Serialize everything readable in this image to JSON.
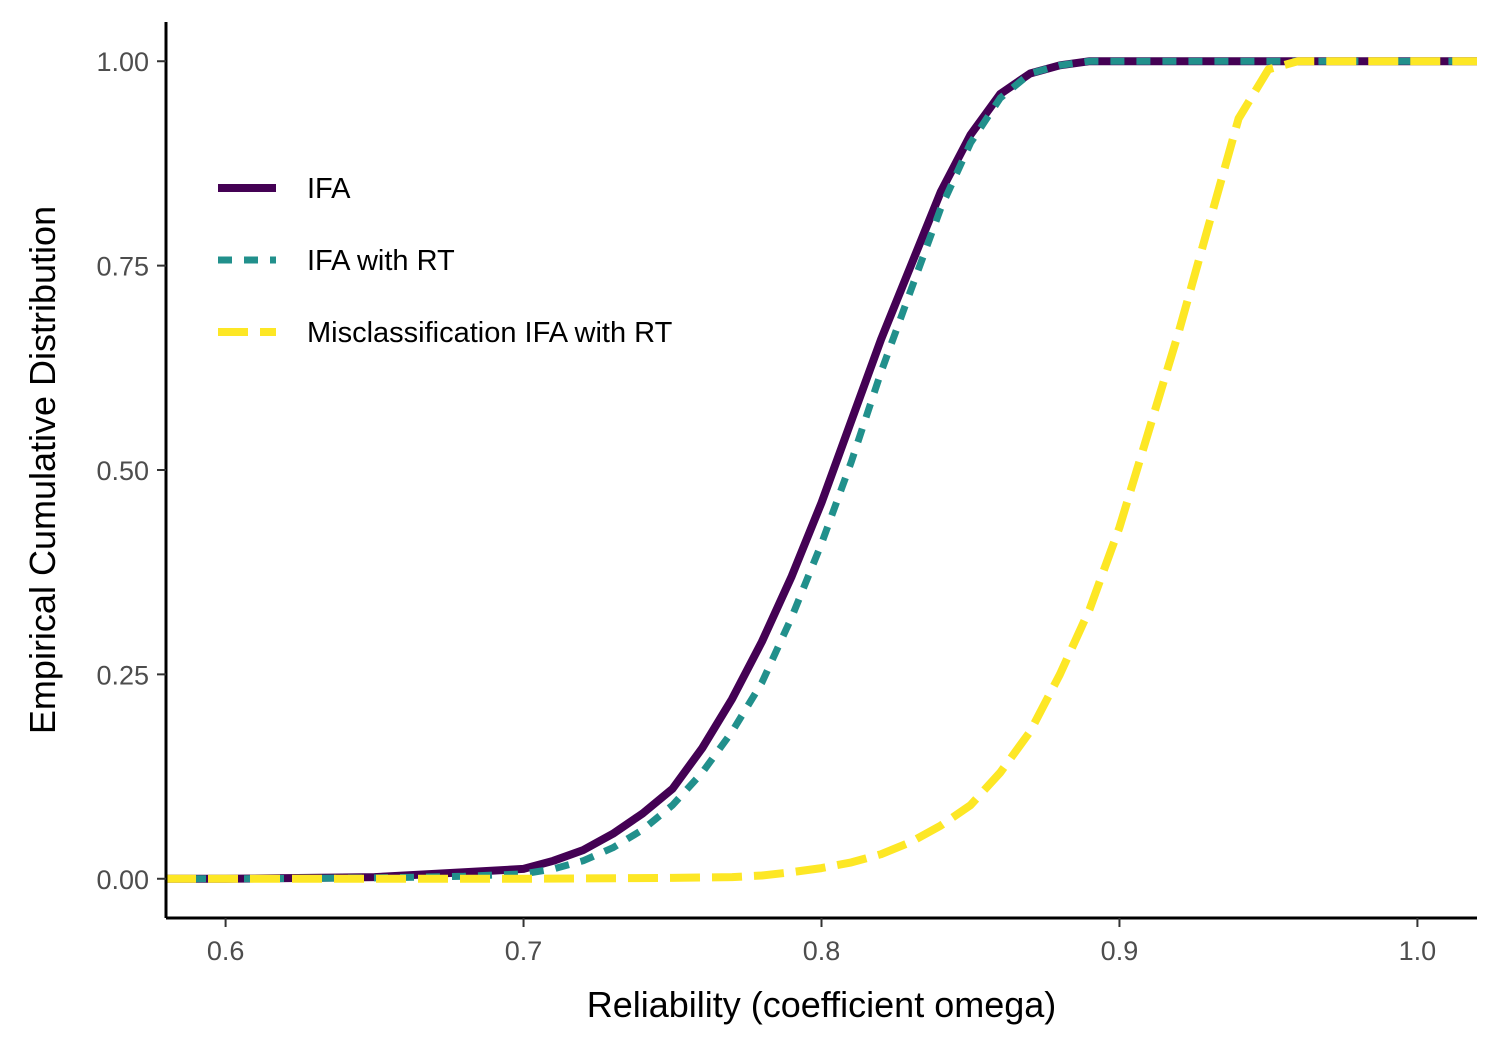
{
  "chart_data": {
    "type": "line",
    "subtype": "ecdf",
    "title": "",
    "xlabel": "Reliability (coefficient omega)",
    "ylabel": "Empirical Cumulative Distribution",
    "xlim": [
      0.58,
      1.02
    ],
    "ylim": [
      -0.048,
      1.048
    ],
    "xticks": [
      0.6,
      0.7,
      0.8,
      0.9,
      1.0
    ],
    "xtick_labels": [
      "0.6",
      "0.7",
      "0.8",
      "0.9",
      "1.0"
    ],
    "yticks": [
      0.0,
      0.25,
      0.5,
      0.75,
      1.0
    ],
    "ytick_labels": [
      "0.00",
      "0.25",
      "0.50",
      "0.75",
      "1.00"
    ],
    "grid": false,
    "legend_position": "top-left",
    "series": [
      {
        "name": "IFA",
        "color": "#440154",
        "linestyle": "solid",
        "x": [
          0.58,
          0.6,
          0.65,
          0.68,
          0.7,
          0.71,
          0.72,
          0.73,
          0.74,
          0.75,
          0.76,
          0.77,
          0.78,
          0.79,
          0.8,
          0.81,
          0.82,
          0.83,
          0.84,
          0.85,
          0.86,
          0.87,
          0.88,
          0.89,
          0.9,
          1.02
        ],
        "y": [
          0.0,
          0.0,
          0.002,
          0.008,
          0.012,
          0.022,
          0.035,
          0.055,
          0.08,
          0.11,
          0.16,
          0.22,
          0.29,
          0.37,
          0.46,
          0.56,
          0.66,
          0.75,
          0.84,
          0.91,
          0.96,
          0.985,
          0.995,
          1.0,
          1.0,
          1.0
        ]
      },
      {
        "name": "IFA with RT",
        "color": "#21908C",
        "linestyle": "dashed",
        "x": [
          0.58,
          0.6,
          0.65,
          0.68,
          0.7,
          0.71,
          0.72,
          0.73,
          0.74,
          0.75,
          0.76,
          0.77,
          0.78,
          0.79,
          0.8,
          0.81,
          0.82,
          0.83,
          0.84,
          0.85,
          0.86,
          0.87,
          0.88,
          0.89,
          0.9,
          1.02
        ],
        "y": [
          0.0,
          0.0,
          0.001,
          0.003,
          0.006,
          0.012,
          0.022,
          0.038,
          0.06,
          0.09,
          0.13,
          0.18,
          0.24,
          0.32,
          0.41,
          0.51,
          0.62,
          0.72,
          0.82,
          0.9,
          0.955,
          0.985,
          0.995,
          1.0,
          1.0,
          1.0
        ]
      },
      {
        "name": "Misclassification IFA with RT",
        "color": "#FDE725",
        "linestyle": "longdash",
        "x": [
          0.58,
          0.65,
          0.7,
          0.75,
          0.77,
          0.78,
          0.79,
          0.8,
          0.81,
          0.82,
          0.83,
          0.84,
          0.85,
          0.86,
          0.87,
          0.88,
          0.89,
          0.9,
          0.91,
          0.92,
          0.93,
          0.94,
          0.95,
          0.96,
          0.97,
          1.02
        ],
        "y": [
          0.0,
          0.0,
          0.0,
          0.001,
          0.002,
          0.004,
          0.008,
          0.013,
          0.02,
          0.03,
          0.045,
          0.065,
          0.09,
          0.13,
          0.18,
          0.25,
          0.33,
          0.43,
          0.55,
          0.67,
          0.8,
          0.93,
          0.99,
          1.0,
          1.0,
          1.0
        ]
      }
    ]
  }
}
